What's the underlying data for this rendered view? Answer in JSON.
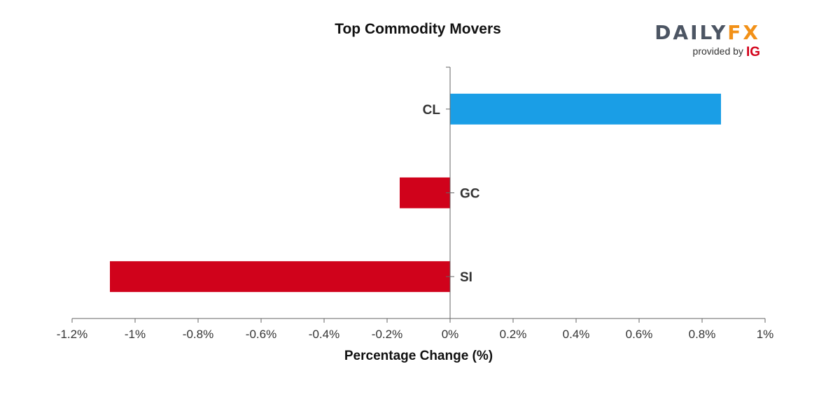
{
  "logo": {
    "brand_daily": "DAILY",
    "brand_fx": "FX",
    "provided_by": "provided by",
    "ig": "IG"
  },
  "colors": {
    "positive": "#1a9ee6",
    "negative": "#d0021b",
    "axis": "#666666"
  },
  "chart_data": {
    "type": "bar",
    "orientation": "horizontal",
    "title": "Top Commodity Movers",
    "xlabel": "Percentage Change (%)",
    "ylabel": "",
    "categories": [
      "CL",
      "GC",
      "SI"
    ],
    "values": [
      0.86,
      -0.16,
      -1.08
    ],
    "xlim": [
      -1.2,
      1
    ],
    "x_ticks": [
      -1.2,
      -1,
      -0.8,
      -0.6,
      -0.4,
      -0.2,
      0,
      0.2,
      0.4,
      0.6,
      0.8,
      1
    ],
    "x_tick_labels": [
      "-1.2%",
      "-1%",
      "-0.8%",
      "-0.6%",
      "-0.4%",
      "-0.2%",
      "0%",
      "0.2%",
      "0.4%",
      "0.6%",
      "0.8%",
      "1%"
    ],
    "grid": false,
    "legend": "none"
  }
}
